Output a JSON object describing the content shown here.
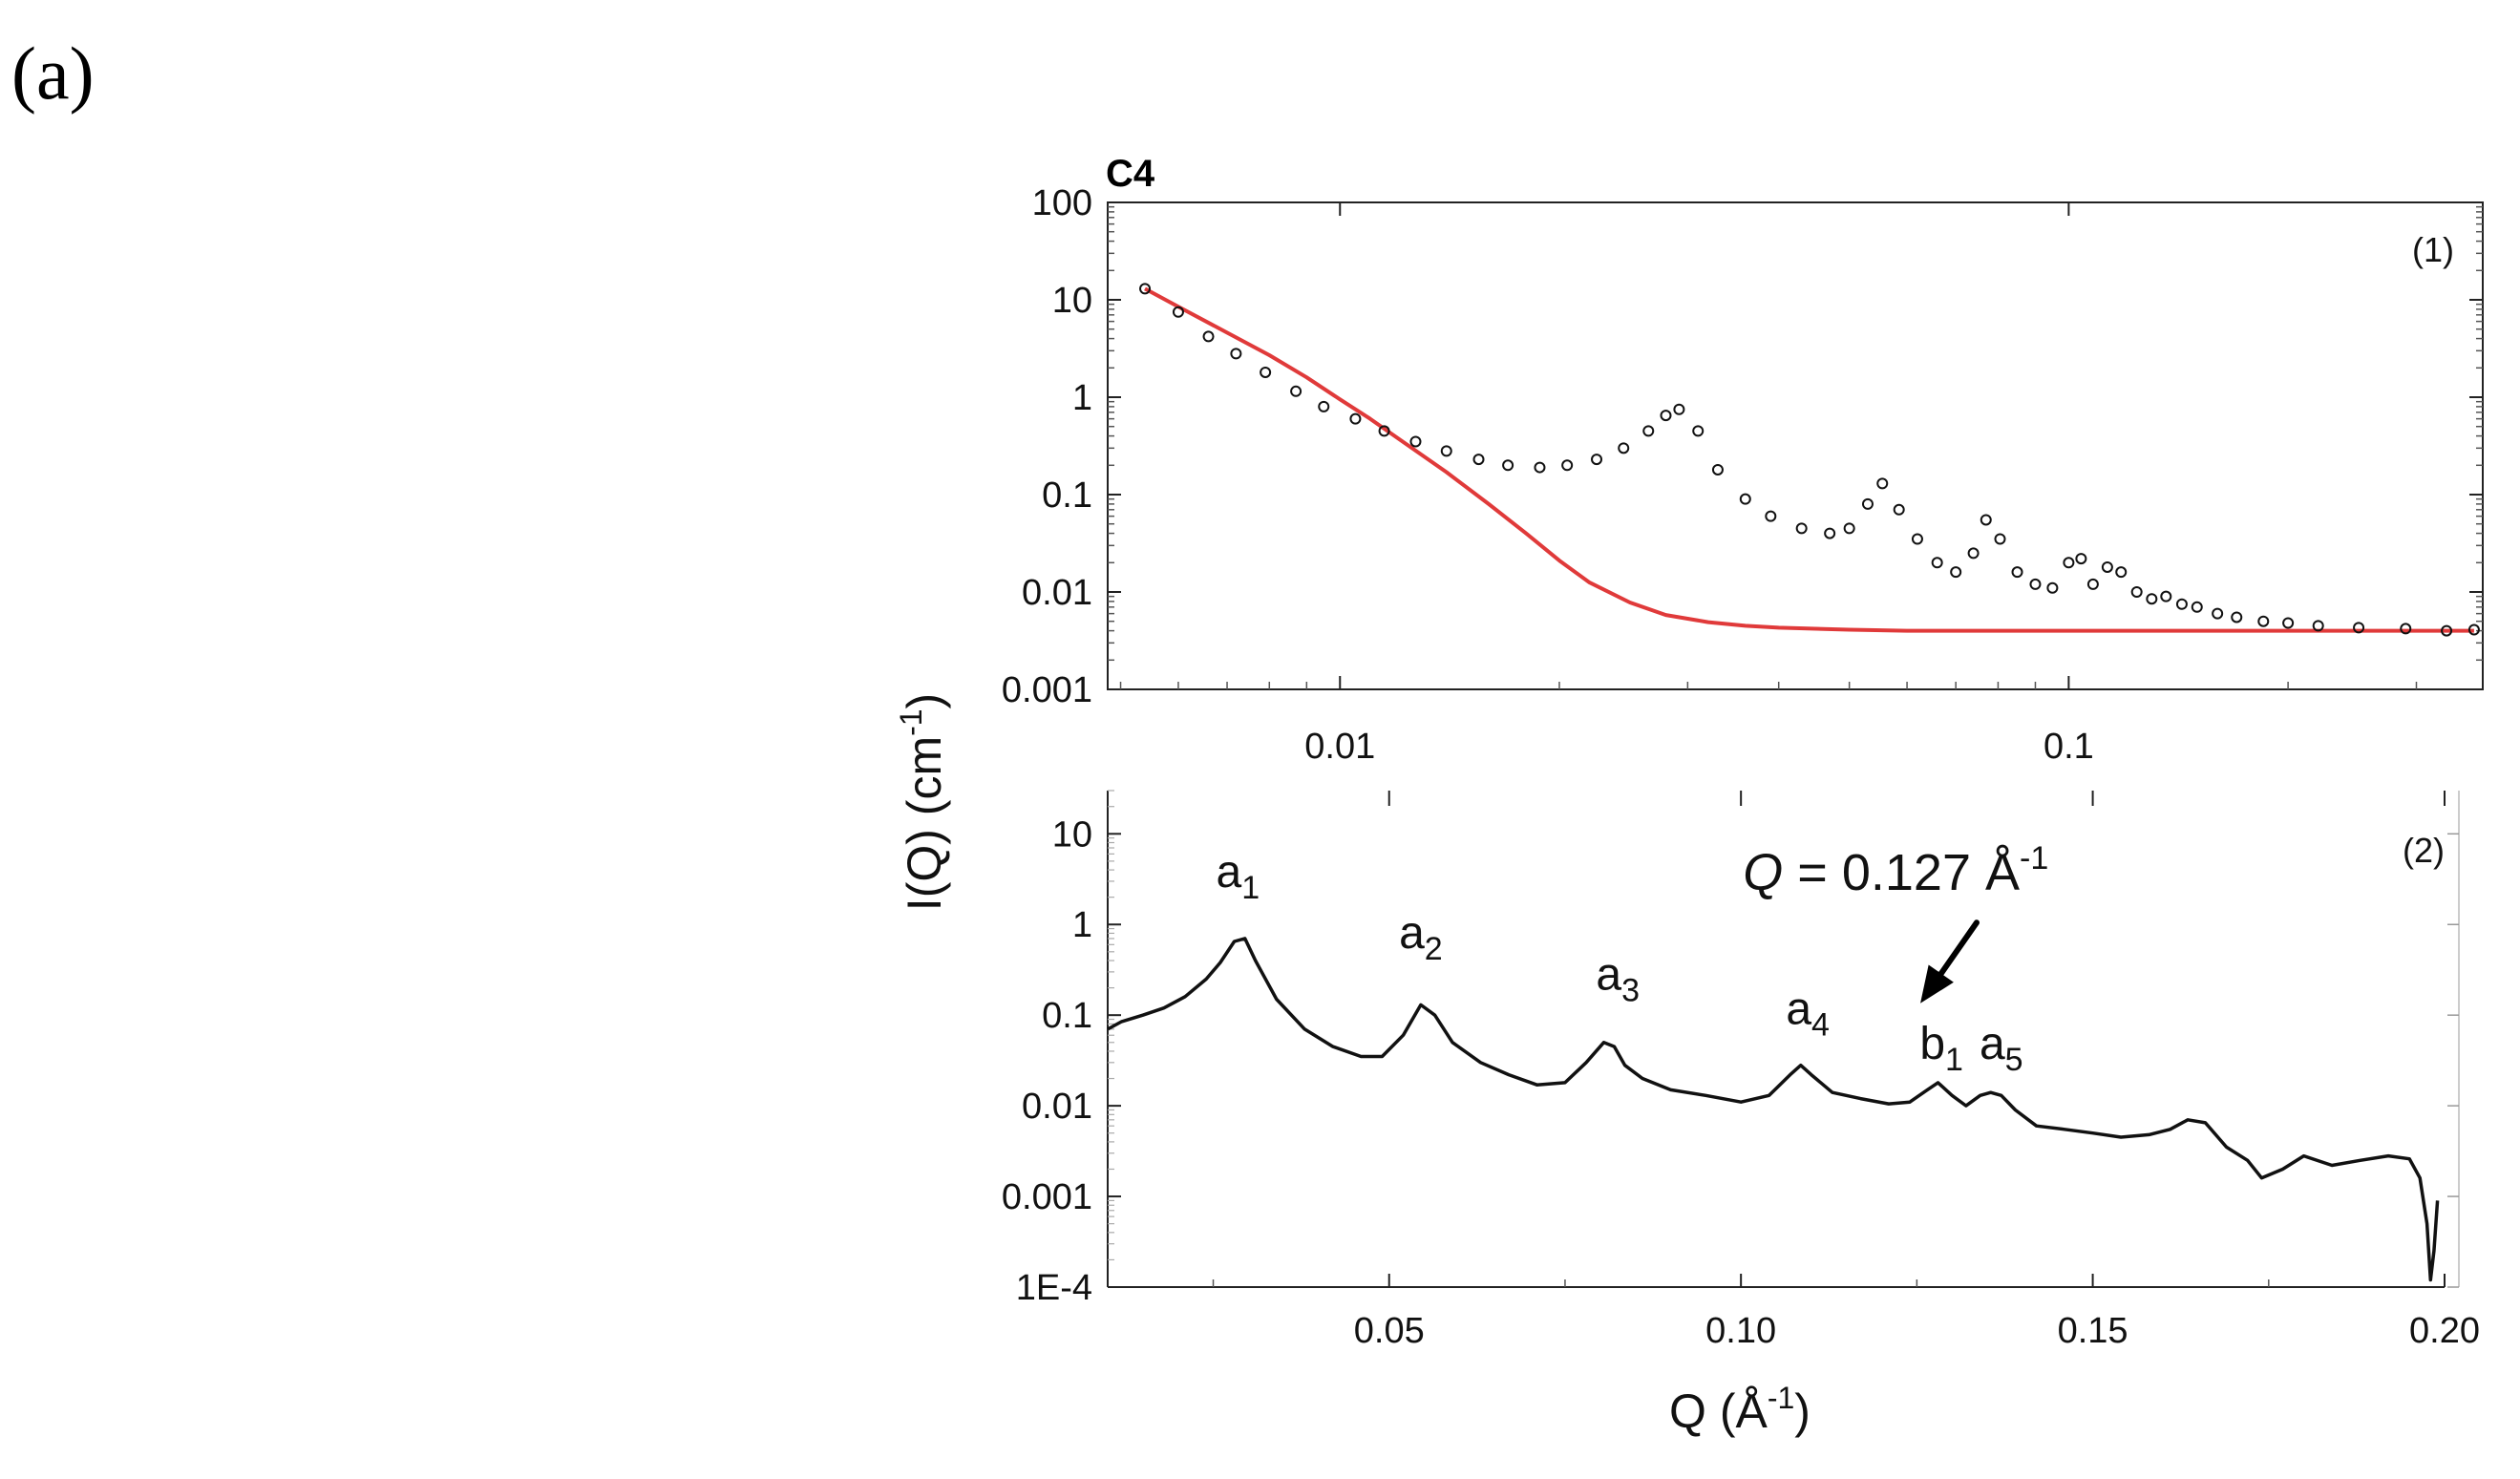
{
  "panel_label": "(a)",
  "chart_data": [
    {
      "type": "scatter",
      "title": "C4",
      "panel_number": "(1)",
      "xscale": "log",
      "yscale": "log",
      "xlim": [
        0.0048,
        0.37
      ],
      "ylim": [
        0.001,
        100
      ],
      "xticks": [
        {
          "value": 0.01,
          "label": "0.01"
        },
        {
          "value": 0.1,
          "label": "0.1"
        }
      ],
      "yticks": [
        {
          "value": 100,
          "label": "100"
        },
        {
          "value": 10,
          "label": "10"
        },
        {
          "value": 1,
          "label": "1"
        },
        {
          "value": 0.1,
          "label": "0.1"
        },
        {
          "value": 0.01,
          "label": "0.01"
        },
        {
          "value": 0.001,
          "label": "0.001"
        }
      ],
      "series": [
        {
          "name": "data",
          "style": "open-markers",
          "color": "#111111",
          "x": [
            0.0054,
            0.006,
            0.0066,
            0.0072,
            0.0079,
            0.0087,
            0.0095,
            0.0105,
            0.0115,
            0.0127,
            0.014,
            0.0155,
            0.017,
            0.0188,
            0.0205,
            0.0225,
            0.0245,
            0.0265,
            0.028,
            0.0292,
            0.031,
            0.033,
            0.036,
            0.039,
            0.043,
            0.047,
            0.05,
            0.053,
            0.0555,
            0.0585,
            0.062,
            0.066,
            0.07,
            0.074,
            0.077,
            0.0805,
            0.085,
            0.09,
            0.095,
            0.1,
            0.104,
            0.108,
            0.113,
            0.118,
            0.124,
            0.13,
            0.136,
            0.143,
            0.15,
            0.16,
            0.17,
            0.185,
            0.2,
            0.22,
            0.25,
            0.29,
            0.33,
            0.36
          ],
          "y": [
            13,
            7.5,
            4.2,
            2.8,
            1.8,
            1.15,
            0.8,
            0.6,
            0.45,
            0.35,
            0.28,
            0.23,
            0.2,
            0.19,
            0.2,
            0.23,
            0.3,
            0.45,
            0.65,
            0.75,
            0.45,
            0.18,
            0.09,
            0.06,
            0.045,
            0.04,
            0.045,
            0.08,
            0.13,
            0.07,
            0.035,
            0.02,
            0.016,
            0.025,
            0.055,
            0.035,
            0.016,
            0.012,
            0.011,
            0.02,
            0.022,
            0.012,
            0.018,
            0.016,
            0.01,
            0.0085,
            0.009,
            0.0075,
            0.007,
            0.006,
            0.0055,
            0.005,
            0.0048,
            0.0045,
            0.0043,
            0.0042,
            0.004,
            0.0041
          ]
        },
        {
          "name": "fit",
          "style": "line",
          "color": "#e03a3a",
          "x": [
            0.0054,
            0.006,
            0.007,
            0.008,
            0.009,
            0.01,
            0.011,
            0.012,
            0.014,
            0.016,
            0.018,
            0.02,
            0.022,
            0.025,
            0.028,
            0.032,
            0.036,
            0.04,
            0.05,
            0.06,
            0.08,
            0.1,
            0.15,
            0.2,
            0.25,
            0.3,
            0.36
          ],
          "y": [
            13,
            8.5,
            4.6,
            2.7,
            1.6,
            0.95,
            0.6,
            0.38,
            0.17,
            0.08,
            0.04,
            0.021,
            0.0125,
            0.0078,
            0.0058,
            0.0049,
            0.0045,
            0.0043,
            0.0041,
            0.004,
            0.004,
            0.004,
            0.004,
            0.004,
            0.004,
            0.004,
            0.004
          ]
        }
      ]
    },
    {
      "type": "line",
      "panel_number": "(2)",
      "xscale": "linear",
      "yscale": "log",
      "xlim": [
        0.01,
        0.2
      ],
      "ylim": [
        0.0001,
        30
      ],
      "xlabel": "Q (Å",
      "xlabel_sup": "-1",
      "xlabel_close": ")",
      "ylabel": "I(Q) (cm",
      "ylabel_sup": "-1",
      "ylabel_close": ")",
      "xticks": [
        {
          "value": 0.05,
          "label": "0.05"
        },
        {
          "value": 0.1,
          "label": "0.10"
        },
        {
          "value": 0.15,
          "label": "0.15"
        },
        {
          "value": 0.2,
          "label": "0.20"
        }
      ],
      "yticks": [
        {
          "value": 10,
          "label": "10"
        },
        {
          "value": 1,
          "label": "1"
        },
        {
          "value": 0.1,
          "label": "0.1"
        },
        {
          "value": 0.01,
          "label": "0.01"
        },
        {
          "value": 0.001,
          "label": "0.001"
        },
        {
          "value": 0.0001,
          "label": "1E-4"
        }
      ],
      "series": [
        {
          "name": "profile",
          "color": "#111111",
          "x": [
            0.01,
            0.012,
            0.015,
            0.018,
            0.021,
            0.024,
            0.026,
            0.028,
            0.0295,
            0.031,
            0.034,
            0.038,
            0.042,
            0.046,
            0.049,
            0.052,
            0.0545,
            0.0565,
            0.059,
            0.063,
            0.067,
            0.071,
            0.075,
            0.078,
            0.0805,
            0.082,
            0.0835,
            0.086,
            0.09,
            0.095,
            0.1,
            0.104,
            0.107,
            0.1085,
            0.11,
            0.113,
            0.117,
            0.121,
            0.124,
            0.1265,
            0.128,
            0.13,
            0.132,
            0.134,
            0.1355,
            0.137,
            0.139,
            0.142,
            0.146,
            0.15,
            0.154,
            0.158,
            0.161,
            0.1635,
            0.166,
            0.169,
            0.172,
            0.174,
            0.177,
            0.18,
            0.184,
            0.188,
            0.192,
            0.195,
            0.1965,
            0.1975,
            0.198,
            0.1985,
            0.199
          ],
          "y": [
            0.07,
            0.085,
            0.1,
            0.12,
            0.16,
            0.25,
            0.38,
            0.65,
            0.7,
            0.4,
            0.15,
            0.07,
            0.045,
            0.035,
            0.035,
            0.06,
            0.13,
            0.1,
            0.05,
            0.03,
            0.022,
            0.017,
            0.018,
            0.03,
            0.05,
            0.045,
            0.028,
            0.02,
            0.015,
            0.013,
            0.011,
            0.013,
            0.022,
            0.028,
            0.022,
            0.014,
            0.012,
            0.0105,
            0.011,
            0.015,
            0.018,
            0.013,
            0.01,
            0.013,
            0.014,
            0.013,
            0.009,
            0.006,
            0.0055,
            0.005,
            0.0045,
            0.0048,
            0.0055,
            0.007,
            0.0065,
            0.0035,
            0.0025,
            0.0016,
            0.002,
            0.0028,
            0.0022,
            0.0025,
            0.0028,
            0.0026,
            0.0016,
            0.0005,
            0.00012,
            0.00025,
            0.0009
          ]
        }
      ],
      "peak_labels": [
        {
          "base": "a",
          "sub": "1",
          "x": 0.0285,
          "y": 2.6,
          "color": "#111111"
        },
        {
          "base": "a",
          "sub": "2",
          "x": 0.0545,
          "y": 0.55,
          "color": "#111111"
        },
        {
          "base": "a",
          "sub": "3",
          "x": 0.0825,
          "y": 0.19,
          "color": "#111111"
        },
        {
          "base": "a",
          "sub": "4",
          "x": 0.1095,
          "y": 0.08,
          "color": "#111111"
        },
        {
          "base": "b",
          "sub": "1",
          "x": 0.1285,
          "y": 0.033,
          "color": "#e03030"
        },
        {
          "base": "a",
          "sub": "5",
          "x": 0.137,
          "y": 0.033,
          "color": "#111111"
        }
      ],
      "annotation": {
        "prefix": "Q",
        "middle": " = 0.127 Å",
        "sup": "-1",
        "text_x": 0.122,
        "text_y": 2.4,
        "arrow_from_x": 0.1335,
        "arrow_from_y": 1.05,
        "arrow_to_x": 0.1255,
        "arrow_to_y": 0.135
      }
    }
  ]
}
